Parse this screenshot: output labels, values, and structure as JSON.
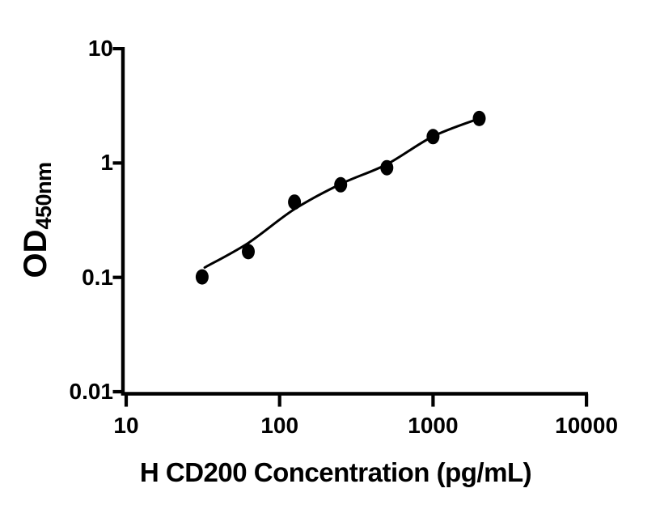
{
  "figure": {
    "background_color": "#ffffff",
    "line_color": "#000000"
  },
  "chart_data": {
    "type": "scatter",
    "title": "",
    "xlabel": "H CD200 Concentration (pg/mL)",
    "ylabel": "OD",
    "ylabel_subscript": "450nm",
    "x_scale": "log",
    "y_scale": "log",
    "xlim": [
      10,
      10000
    ],
    "ylim": [
      0.01,
      10
    ],
    "x_ticks": [
      10,
      100,
      1000,
      10000
    ],
    "x_tick_labels": [
      "10",
      "100",
      "1000",
      "10000"
    ],
    "y_ticks": [
      0.01,
      0.1,
      1,
      10
    ],
    "y_tick_labels": [
      "0.01",
      "0.1",
      "1",
      "10"
    ],
    "grid": false,
    "legend": null,
    "series": [
      {
        "name": "standard-data-points",
        "type": "scatter",
        "marker": "filled-circle",
        "color": "#000000",
        "points": [
          {
            "x": 31.25,
            "y": 0.101
          },
          {
            "x": 62.5,
            "y": 0.168
          },
          {
            "x": 125,
            "y": 0.455
          },
          {
            "x": 250,
            "y": 0.645
          },
          {
            "x": 500,
            "y": 0.91
          },
          {
            "x": 1000,
            "y": 1.7
          },
          {
            "x": 2000,
            "y": 2.45
          }
        ]
      },
      {
        "name": "fit-curve",
        "type": "line",
        "color": "#000000",
        "points": [
          {
            "x": 32.5,
            "y": 0.122
          },
          {
            "x": 62.5,
            "y": 0.2
          },
          {
            "x": 125,
            "y": 0.395
          },
          {
            "x": 250,
            "y": 0.655
          },
          {
            "x": 500,
            "y": 0.975
          },
          {
            "x": 1000,
            "y": 1.71
          },
          {
            "x": 2000,
            "y": 2.45
          }
        ]
      }
    ]
  }
}
